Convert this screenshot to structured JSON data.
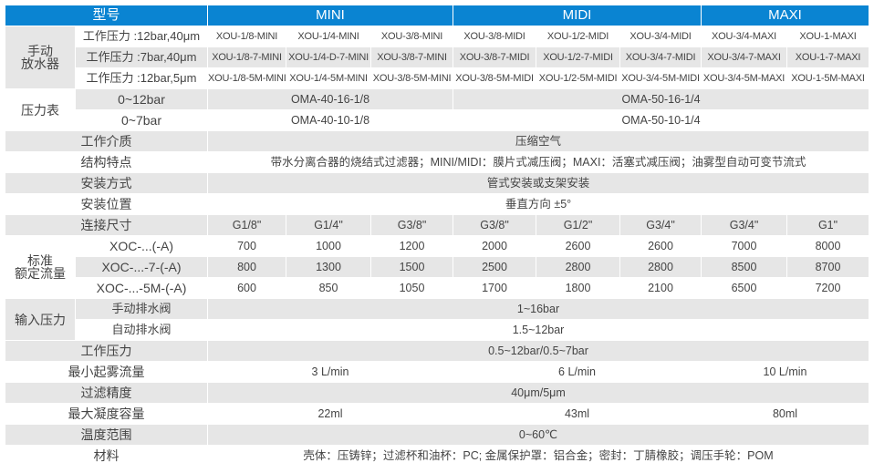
{
  "header": {
    "model": "型号",
    "series": [
      "MINI",
      "MIDI",
      "MAXI"
    ]
  },
  "colors": {
    "header_bg": "#0a84d2",
    "header_text": "#ffffff",
    "stripe": "#e6e6e6"
  },
  "manual_drain": {
    "label": "手动放水器",
    "rows": [
      {
        "label": "工作压力 :12bar,40μm",
        "values": [
          "XOU-1/8-MINI",
          "XOU-1/4-MINI",
          "XOU-3/8-MINI",
          "XOU-3/8-MIDI",
          "XOU-1/2-MIDI",
          "XOU-3/4-MIDI",
          "XOU-3/4-MAXI",
          "XOU-1-MAXI"
        ]
      },
      {
        "label": "工作压力 :7bar,40μm",
        "values": [
          "XOU-1/8-7-MINI",
          "XOU-1/4-D-7-MINI",
          "XOU-3/8-7-MINI",
          "XOU-3/8-7-MIDI",
          "XOU-1/2-7-MIDI",
          "XOU-3/4-7-MIDI",
          "XOU-3/4-7-MAXI",
          "XOU-1-7-MAXI"
        ]
      },
      {
        "label": "工作压力 :12bar,5μm",
        "values": [
          "XOU-1/8-5M-MINI",
          "XOU-1/4-5M-MINI",
          "XOU-3/8-5M-MINI",
          "XOU-3/8-5M-MIDI",
          "XOU-1/2-5M-MIDI",
          "XOU-3/4-5M-MIDI",
          "XOU-3/4-5M-MAXI",
          "XOU-1-5M-MAXI"
        ]
      }
    ]
  },
  "gauge": {
    "label": "压力表",
    "rows": [
      {
        "label": "0~12bar",
        "mini": "OMA-40-16-1/8",
        "midi_maxi": "OMA-50-16-1/4"
      },
      {
        "label": "0~7bar",
        "mini": "OMA-40-10-1/8",
        "midi_maxi": "OMA-50-10-1/4"
      }
    ]
  },
  "medium": {
    "label": "工作介质",
    "value": "压缩空气"
  },
  "structure": {
    "label": "结构特点",
    "value": "带水分离合器的烧结式过滤器；MINI/MIDI：膜片式减压阀；MAXI：活塞式减压阀；油雾型自动可变节流式"
  },
  "mounting": {
    "label": "安装方式",
    "value": "管式安装或支架安装"
  },
  "position": {
    "label": "安装位置",
    "value": "垂直方向 ±5°"
  },
  "connection": {
    "label": "连接尺寸",
    "values": [
      "G1/8\"",
      "G1/4\"",
      "G3/8\"",
      "G3/8\"",
      "G1/2\"",
      "G3/4\"",
      "G3/4\"",
      "G1\""
    ]
  },
  "flow": {
    "label": "标准额定流量",
    "rows": [
      {
        "label": "XOC-...(-A)",
        "values": [
          "700",
          "1000",
          "1200",
          "2000",
          "2600",
          "2600",
          "7000",
          "8000"
        ]
      },
      {
        "label": "XOC-...-7-(-A)",
        "values": [
          "800",
          "1300",
          "1500",
          "2500",
          "2800",
          "2800",
          "8500",
          "8700"
        ]
      },
      {
        "label": "XOC-...-5M-(-A)",
        "values": [
          "600",
          "850",
          "1050",
          "1700",
          "1800",
          "2100",
          "6500",
          "7200"
        ]
      }
    ]
  },
  "input_pressure": {
    "label": "输入压力",
    "rows": [
      {
        "label": "手动排水阀",
        "value": "1~16bar"
      },
      {
        "label": "自动排水阀",
        "value": "1.5~12bar"
      }
    ]
  },
  "working_pressure": {
    "label": "工作压力",
    "value": "0.5~12bar/0.5~7bar"
  },
  "min_mist_flow": {
    "label": "最小起雾流量",
    "values": [
      "3 L/min",
      "6 L/min",
      "10 L/min"
    ]
  },
  "filtration": {
    "label": "过滤精度",
    "value": "40μm/5μm"
  },
  "max_condensate": {
    "label": "最大凝度容量",
    "values": [
      "22ml",
      "43ml",
      "80ml"
    ]
  },
  "temperature": {
    "label": "温度范围",
    "value": "0~60℃"
  },
  "material": {
    "label": "材料",
    "value": "壳体：压铸锌；过滤杯和油杯：PC; 金属保护罩：铝合金；密封：丁腈橡胶；调压手轮：POM"
  }
}
